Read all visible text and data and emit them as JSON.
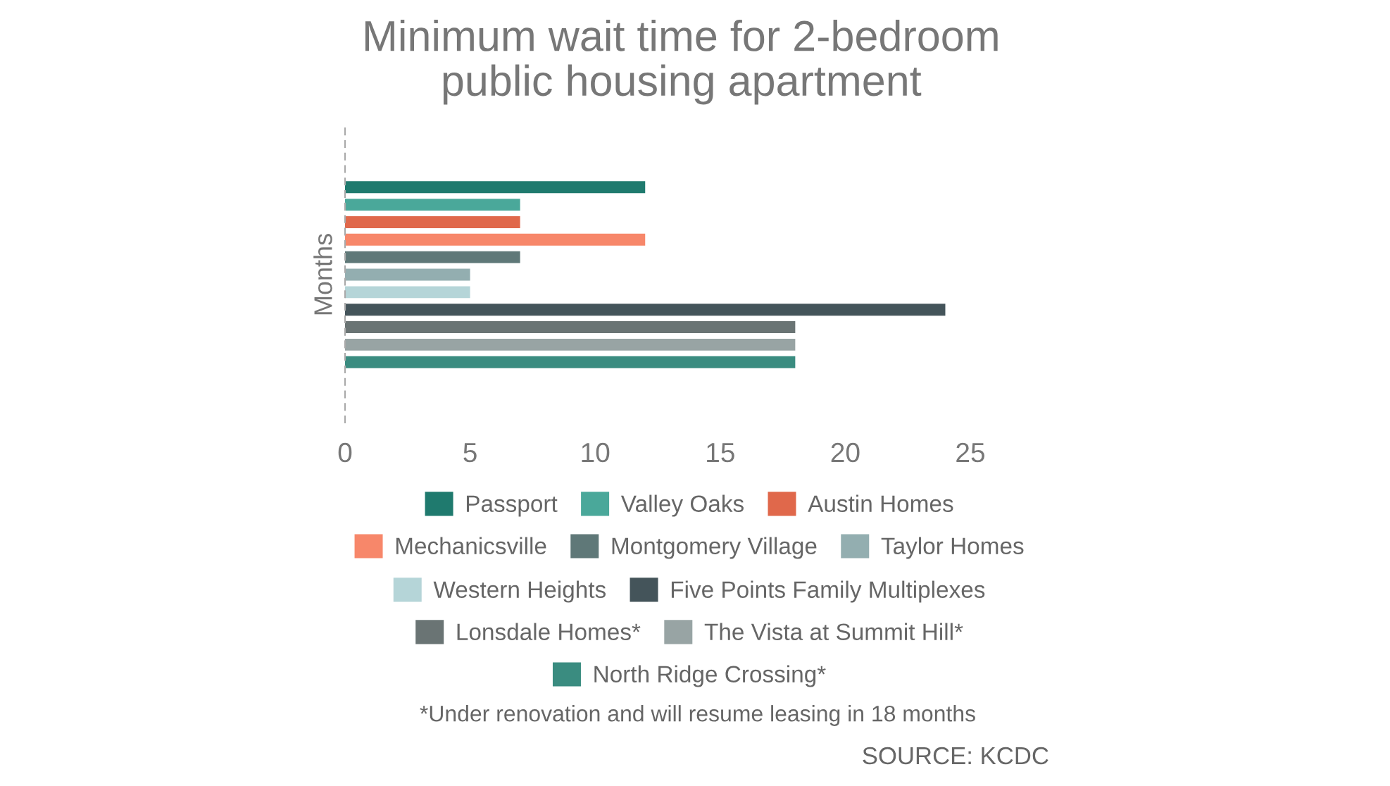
{
  "chart_data": {
    "type": "bar",
    "orientation": "horizontal",
    "title": "Minimum wait time for 2-bedroom\npublic housing apartment",
    "ylabel": "Months",
    "categories": [
      null
    ],
    "series": [
      {
        "name": "Passport",
        "color": "#1f7a6e",
        "values": [
          12
        ]
      },
      {
        "name": "Valley Oaks",
        "color": "#4aa89a",
        "values": [
          7
        ]
      },
      {
        "name": "Austin Homes",
        "color": "#e0684b",
        "values": [
          7
        ]
      },
      {
        "name": "Mechanicsville",
        "color": "#f7876a",
        "values": [
          12
        ]
      },
      {
        "name": "Montgomery Village",
        "color": "#5f7878",
        "values": [
          7
        ]
      },
      {
        "name": "Taylor Homes",
        "color": "#93aeb0",
        "values": [
          5
        ]
      },
      {
        "name": "Western Heights",
        "color": "#b5d5d8",
        "values": [
          5
        ]
      },
      {
        "name": "Five Points Family Multiplexes",
        "color": "#44545a",
        "values": [
          24
        ]
      },
      {
        "name": "Lonsdale Homes*",
        "color": "#6a7474",
        "values": [
          18
        ]
      },
      {
        "name": "The Vista at Summit Hill*",
        "color": "#98a4a4",
        "values": [
          18
        ]
      },
      {
        "name": "North Ridge Crossing*",
        "color": "#3a8c80",
        "values": [
          18
        ]
      }
    ],
    "xlim": [
      0,
      25
    ],
    "xticks": [
      0,
      5,
      10,
      15,
      20,
      25
    ],
    "grid": false,
    "legend": "bottom",
    "annotations": [
      "*Under renovation and will resume leasing in 18 months",
      "SOURCE: KCDC"
    ]
  }
}
